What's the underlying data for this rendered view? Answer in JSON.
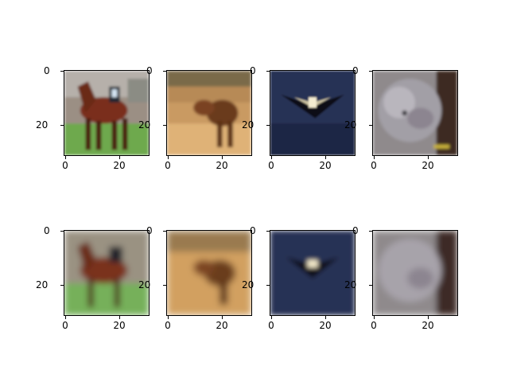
{
  "figure": {
    "rows": [
      {
        "row_role": "original",
        "panels": [
          {
            "subject": "horse"
          },
          {
            "subject": "deer"
          },
          {
            "subject": "airplane"
          },
          {
            "subject": "cat"
          }
        ]
      },
      {
        "row_role": "reconstruction",
        "panels": [
          {
            "subject": "horse"
          },
          {
            "subject": "deer"
          },
          {
            "subject": "airplane"
          },
          {
            "subject": "cat"
          }
        ]
      }
    ],
    "axes": {
      "x_ticks": [
        "0",
        "20"
      ],
      "y_ticks": [
        "0",
        "20"
      ]
    }
  }
}
